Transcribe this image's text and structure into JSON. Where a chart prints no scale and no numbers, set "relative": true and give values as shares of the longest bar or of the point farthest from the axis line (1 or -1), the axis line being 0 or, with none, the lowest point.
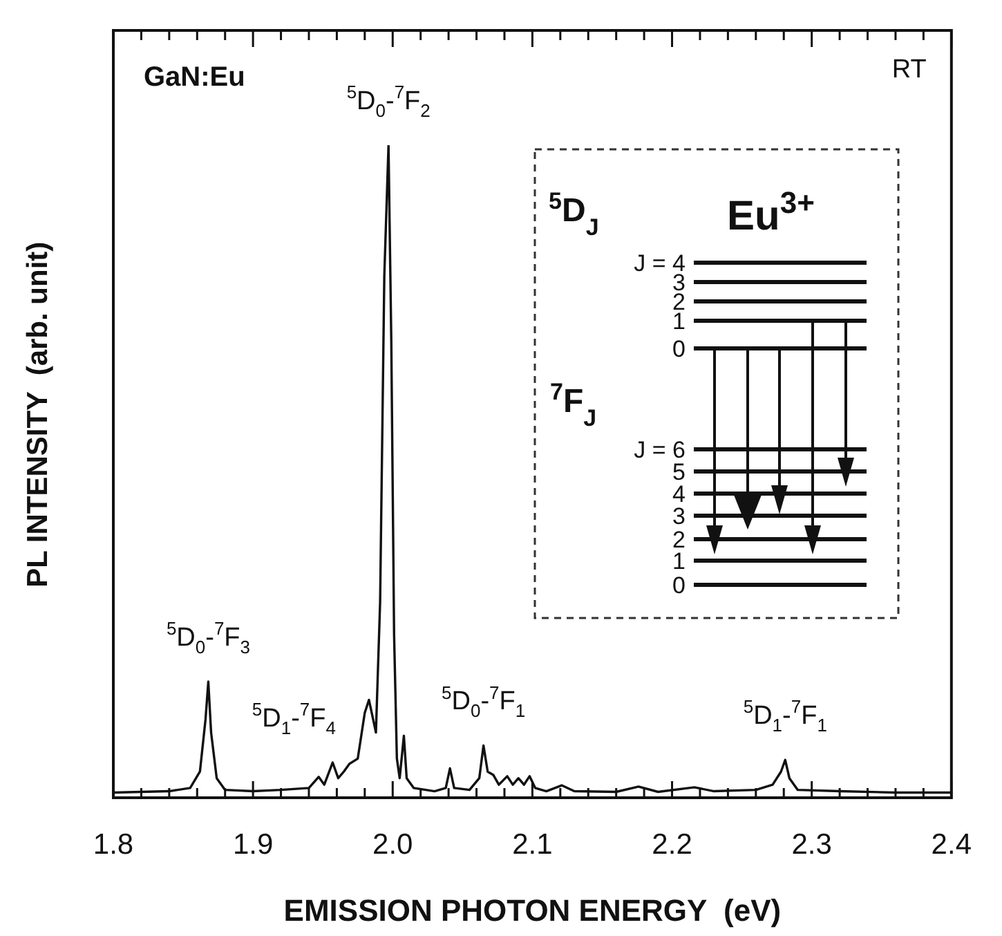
{
  "chart_data": {
    "type": "line",
    "relative": true,
    "xlabel": "EMISSION PHOTON ENERGY  (eV)",
    "ylabel": "PL INTENSITY  (arb. unit)",
    "xlim": [
      1.8,
      2.4
    ],
    "xticks": [
      1.8,
      {
        "value": 1.82,
        "label": null
      },
      {
        "value": 1.84,
        "label": null
      },
      {
        "value": 1.86,
        "label": null
      },
      {
        "value": 1.88,
        "label": null
      },
      1.9,
      {
        "value": 1.92,
        "label": null
      },
      {
        "value": 1.94,
        "label": null
      },
      {
        "value": 1.96,
        "label": null
      },
      {
        "value": 1.98,
        "label": null
      },
      {
        "value": 2.0,
        "label": "2.0"
      },
      {
        "value": 2.02,
        "label": null
      },
      {
        "value": 2.04,
        "label": null
      },
      {
        "value": 2.06,
        "label": null
      },
      {
        "value": 2.08,
        "label": null
      },
      2.1,
      {
        "value": 2.12,
        "label": null
      },
      {
        "value": 2.14,
        "label": null
      },
      {
        "value": 2.16,
        "label": null
      },
      {
        "value": 2.18,
        "label": null
      },
      2.2,
      {
        "value": 2.22,
        "label": null
      },
      {
        "value": 2.24,
        "label": null
      },
      {
        "value": 2.26,
        "label": null
      },
      {
        "value": 2.28,
        "label": null
      },
      2.3,
      {
        "value": 2.32,
        "label": null
      },
      {
        "value": 2.34,
        "label": null
      },
      {
        "value": 2.36,
        "label": null
      },
      {
        "value": 2.38,
        "label": null
      },
      2.4
    ],
    "grid": false,
    "legend": false,
    "marker": "none",
    "line_style": "solid",
    "series": [
      {
        "color": "#111111",
        "x": [
          1.8,
          1.84,
          1.855,
          1.862,
          1.866,
          1.868,
          1.87,
          1.874,
          1.88,
          1.9,
          1.92,
          1.94,
          1.947,
          1.951,
          1.957,
          1.961,
          1.965,
          1.969,
          1.975,
          1.98,
          1.983,
          1.986,
          1.988,
          1.991,
          1.994,
          1.997,
          1.999,
          2.001,
          2.003,
          2.005,
          2.008,
          2.01,
          2.015,
          2.03,
          2.038,
          2.041,
          2.044,
          2.055,
          2.062,
          2.065,
          2.068,
          2.072,
          2.076,
          2.082,
          2.086,
          2.09,
          2.094,
          2.098,
          2.102,
          2.11,
          2.121,
          2.13,
          2.16,
          2.176,
          2.19,
          2.216,
          2.23,
          2.26,
          2.272,
          2.278,
          2.281,
          2.284,
          2.29,
          2.32,
          2.36,
          2.4
        ],
        "values": [
          0.008,
          0.01,
          0.015,
          0.04,
          0.12,
          0.178,
          0.1,
          0.03,
          0.012,
          0.01,
          0.012,
          0.015,
          0.032,
          0.02,
          0.054,
          0.03,
          0.04,
          0.052,
          0.06,
          0.13,
          0.15,
          0.12,
          0.1,
          0.3,
          0.8,
          1.0,
          0.7,
          0.25,
          0.06,
          0.03,
          0.095,
          0.03,
          0.015,
          0.01,
          0.015,
          0.045,
          0.015,
          0.012,
          0.03,
          0.08,
          0.04,
          0.035,
          0.02,
          0.033,
          0.02,
          0.03,
          0.02,
          0.033,
          0.015,
          0.01,
          0.019,
          0.01,
          0.009,
          0.017,
          0.009,
          0.016,
          0.01,
          0.012,
          0.02,
          0.04,
          0.058,
          0.03,
          0.012,
          0.01,
          0.008,
          0.008
        ]
      }
    ],
    "annotations": [
      "GaN:Eu",
      "RT",
      {
        "text": "$^{5}$D$_{0}$-$^{7}$F$_{2}$",
        "x": 1.997,
        "y": 1.0
      },
      {
        "text": "$^{5}$D$_{0}$-$^{7}$F$_{3}$",
        "x": 1.868,
        "y": 0.178
      },
      {
        "text": "$^{5}$D$_{1}$-$^{7}$F$_{4}$",
        "x": 1.957,
        "y": 0.054
      },
      {
        "text": "$^{5}$D$_{0}$-$^{7}$F$_{1}$",
        "x": 2.065,
        "y": 0.08
      },
      {
        "text": "$^{5}$D$_{1}$-$^{7}$F$_{1}$",
        "x": 2.281,
        "y": 0.058
      },
      "$^{5}$D$_{J}$",
      "Eu$^{3+}$",
      "J = 4",
      "3",
      "2",
      "1",
      "0",
      "$^{7}$F$_{J}$",
      "J = 6",
      "5",
      "4",
      "3",
      "2",
      "1",
      "0"
    ]
  }
}
